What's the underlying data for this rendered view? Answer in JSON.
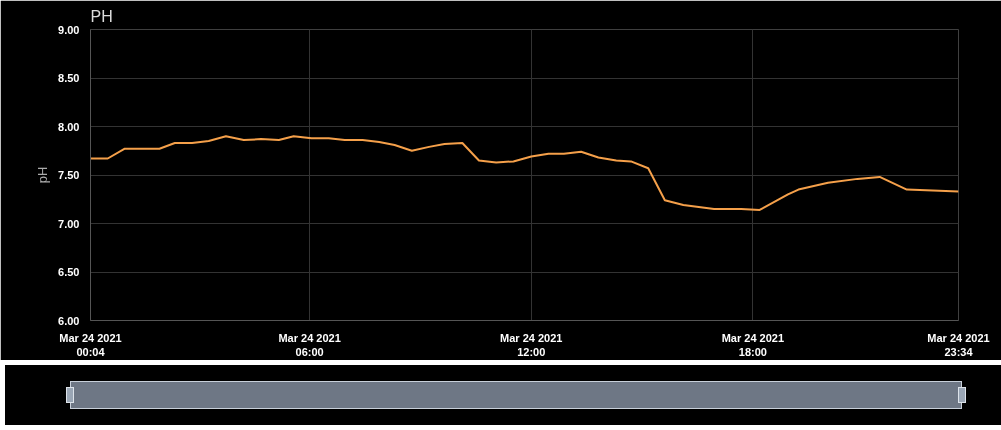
{
  "chart_data": {
    "type": "line",
    "title": "PH",
    "ylabel": "pH",
    "x": [
      "2021-03-24T00:04",
      "2021-03-24T00:32",
      "2021-03-24T00:59",
      "2021-03-24T01:56",
      "2021-03-24T02:21",
      "2021-03-24T02:49",
      "2021-03-24T03:16",
      "2021-03-24T03:44",
      "2021-03-24T04:13",
      "2021-03-24T04:41",
      "2021-03-24T05:10",
      "2021-03-24T05:34",
      "2021-03-24T06:03",
      "2021-03-24T06:31",
      "2021-03-24T06:57",
      "2021-03-24T07:26",
      "2021-03-24T07:53",
      "2021-03-24T08:18",
      "2021-03-24T08:46",
      "2021-03-24T09:14",
      "2021-03-24T09:39",
      "2021-03-24T10:08",
      "2021-03-24T10:35",
      "2021-03-24T11:03",
      "2021-03-24T11:31",
      "2021-03-24T12:00",
      "2021-03-24T12:28",
      "2021-03-24T12:53",
      "2021-03-24T13:21",
      "2021-03-24T13:49",
      "2021-03-24T14:18",
      "2021-03-24T14:42",
      "2021-03-24T15:10",
      "2021-03-24T15:37",
      "2021-03-24T16:07",
      "2021-03-24T16:57",
      "2021-03-24T17:41",
      "2021-03-24T18:11",
      "2021-03-24T18:57",
      "2021-03-24T19:14",
      "2021-03-24T20:02",
      "2021-03-24T20:50",
      "2021-03-24T21:26",
      "2021-03-24T22:10",
      "2021-03-24T23:34"
    ],
    "series": [
      {
        "color": "#f5a04a",
        "values": [
          7.67,
          7.67,
          7.77,
          7.77,
          7.83,
          7.83,
          7.85,
          7.9,
          7.86,
          7.87,
          7.86,
          7.9,
          7.88,
          7.88,
          7.86,
          7.86,
          7.84,
          7.81,
          7.75,
          7.79,
          7.82,
          7.83,
          7.65,
          7.63,
          7.64,
          7.69,
          7.72,
          7.72,
          7.74,
          7.68,
          7.65,
          7.64,
          7.57,
          7.24,
          7.19,
          7.15,
          7.15,
          7.14,
          7.3,
          7.35,
          7.42,
          7.46,
          7.48,
          7.35,
          7.33
        ]
      }
    ],
    "xlim": [
      "2021-03-24T00:04",
      "2021-03-24T23:34"
    ],
    "xticks": [
      {
        "value": "2021-03-24T00:04",
        "label": "Mar 24 2021\n00:04"
      },
      {
        "value": "2021-03-24T06:00",
        "label": "Mar 24 2021\n06:00"
      },
      {
        "value": "2021-03-24T12:00",
        "label": "Mar 24 2021\n12:00"
      },
      {
        "value": "2021-03-24T18:00",
        "label": "Mar 24 2021\n18:00"
      },
      {
        "value": "2021-03-24T23:34",
        "label": "Mar 24 2021\n23:34"
      }
    ],
    "ylim": [
      6,
      9
    ],
    "yticks": [
      {
        "value": 6,
        "label": "6.00"
      },
      {
        "value": 6.5,
        "label": "6.50"
      },
      {
        "value": 7,
        "label": "7.00"
      },
      {
        "value": 7.5,
        "label": "7.50"
      },
      {
        "value": 8,
        "label": "8.00"
      },
      {
        "value": 8.5,
        "label": "8.50"
      },
      {
        "value": 9,
        "label": "9.00"
      }
    ],
    "grid": true,
    "marker": "none",
    "line_style": "solid"
  }
}
